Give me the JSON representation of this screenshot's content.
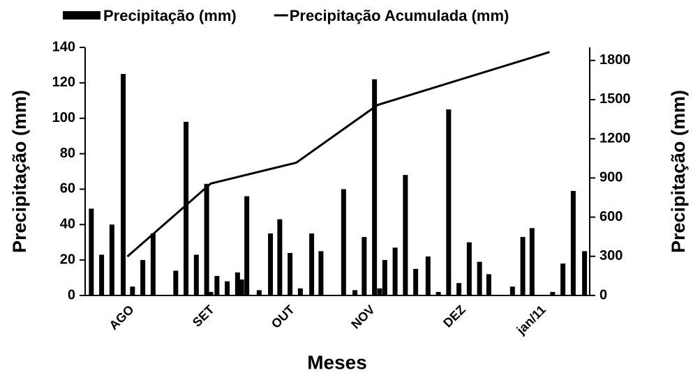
{
  "chart_data": {
    "type": "combo",
    "xlabel": "Meses",
    "ylabel": "Precipitação (mm)",
    "y2label": "Precipitação (mm)",
    "xlim": [
      0,
      49
    ],
    "xticks": [
      {
        "value": 3.9,
        "label": "AGO"
      },
      {
        "value": 11.7,
        "label": "SET"
      },
      {
        "value": 19.5,
        "label": "OUT"
      },
      {
        "value": 27.3,
        "label": "NOV"
      },
      {
        "value": 36.1,
        "label": "DEZ"
      },
      {
        "value": 43.9,
        "label": "jan/11"
      }
    ],
    "ylim": [
      0,
      140
    ],
    "yticks": [
      0,
      20,
      40,
      60,
      80,
      100,
      120,
      140
    ],
    "y2lim": [
      0,
      1900
    ],
    "y2ticks": [
      0,
      300,
      600,
      900,
      1200,
      1500,
      1800
    ],
    "series": [
      {
        "name": "Precipitação (mm)",
        "type": "bar",
        "color": "#000000",
        "x": [
          0.6,
          1.6,
          2.6,
          3.7,
          4.6,
          5.6,
          6.6,
          8.8,
          9.8,
          10.8,
          11.8,
          12.2,
          12.8,
          13.8,
          14.8,
          15.2,
          15.7,
          16.9,
          18.0,
          18.9,
          19.9,
          20.9,
          22.0,
          22.9,
          25.1,
          26.2,
          27.1,
          28.1,
          28.6,
          29.1,
          30.1,
          31.1,
          32.1,
          33.3,
          34.3,
          35.3,
          36.3,
          37.3,
          38.3,
          39.2,
          41.5,
          42.5,
          43.4,
          45.4,
          46.4,
          47.4,
          48.5
        ],
        "values": [
          49,
          23,
          40,
          125,
          5,
          20,
          35,
          14,
          98,
          23,
          63,
          2,
          11,
          8,
          13,
          9,
          56,
          3,
          35,
          43,
          24,
          4,
          35,
          25,
          60,
          3,
          33,
          122,
          4,
          20,
          27,
          68,
          15,
          22,
          2,
          105,
          7,
          30,
          19,
          12,
          5,
          33,
          38,
          2,
          18,
          59,
          25
        ]
      },
      {
        "name": "Precipitação Acumulada (mm)",
        "type": "line",
        "axis": "y2",
        "color": "#000000",
        "x": [
          4.1,
          12.2,
          20.5,
          28.4,
          45.1
        ],
        "values": [
          298,
          857,
          1017,
          1459,
          1864
        ]
      }
    ]
  }
}
